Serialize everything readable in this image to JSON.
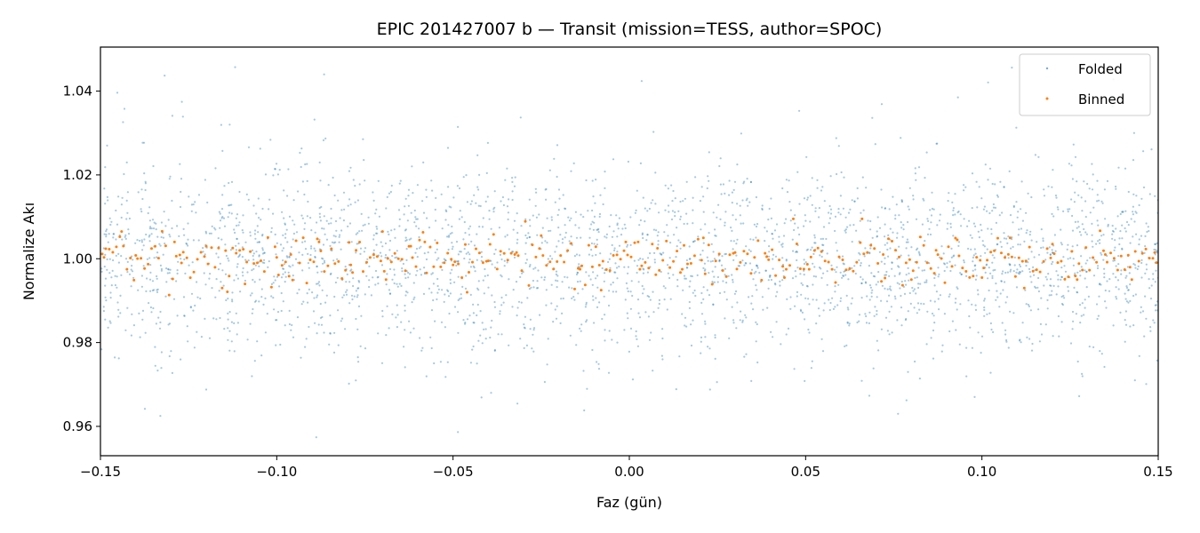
{
  "chart_data": {
    "type": "scatter",
    "title": "EPIC 201427007 b — Transit (mission=TESS, author=SPOC)",
    "xlabel": "Faz (gün)",
    "ylabel": "Normalize Akı",
    "xlim": [
      -0.15,
      0.15
    ],
    "ylim": [
      0.953,
      1.0505
    ],
    "xticks": [
      -0.15,
      -0.1,
      -0.05,
      0.0,
      0.05,
      0.1,
      0.15
    ],
    "xtick_labels": [
      "−0.15",
      "−0.10",
      "−0.05",
      "0.00",
      "0.05",
      "0.10",
      "0.15"
    ],
    "yticks": [
      0.96,
      0.98,
      1.0,
      1.02,
      1.04
    ],
    "ytick_labels": [
      "0.96",
      "0.98",
      "1.00",
      "1.02",
      "1.04"
    ],
    "grid": false,
    "legend_position": "top-right",
    "series": [
      {
        "name": "Folded",
        "color": "#1f77b4",
        "marker": "small-dot",
        "alpha": 0.4,
        "approx_point_count": 3000,
        "center": 1.0,
        "scatter_std": 0.011,
        "points": [
          [
            -0.1481,
            1.027
          ],
          [
            -0.1452,
            1.0396
          ],
          [
            -0.1473,
            0.9851
          ],
          [
            -0.1436,
            1.0326
          ],
          [
            -0.1412,
            0.9817
          ],
          [
            -0.1374,
            0.9642
          ],
          [
            -0.135,
            1.0221
          ],
          [
            -0.133,
            0.9625
          ],
          [
            -0.1318,
            1.0437
          ],
          [
            -0.1296,
            1.0341
          ],
          [
            -0.1266,
            1.0339
          ],
          [
            -0.1233,
            0.9788
          ],
          [
            -0.12,
            0.9688
          ],
          [
            -0.1118,
            1.0457
          ],
          [
            -0.1079,
            1.0266
          ],
          [
            -0.101,
            1.0199
          ],
          [
            -0.0893,
            1.0332
          ],
          [
            -0.0888,
            0.9574
          ],
          [
            -0.0837,
            0.9776
          ],
          [
            -0.0795,
            0.9702
          ],
          [
            -0.064,
            0.979
          ],
          [
            -0.0449,
            0.9752
          ],
          [
            -0.0392,
            0.968
          ],
          [
            -0.0308,
            1.0337
          ],
          [
            -0.0128,
            0.9638
          ],
          [
            -0.0034,
            0.98
          ],
          [
            0.0035,
            1.0424
          ],
          [
            0.001,
            0.9712
          ],
          [
            0.0142,
            0.9767
          ],
          [
            0.0229,
            0.9688
          ],
          [
            0.0468,
            0.9737
          ],
          [
            0.0546,
            0.9808
          ],
          [
            0.0689,
            1.0336
          ],
          [
            0.0716,
            1.0369
          ],
          [
            0.0762,
            0.963
          ],
          [
            0.0932,
            1.0385
          ],
          [
            0.107,
            0.9802
          ],
          [
            0.1085,
            1.0456
          ],
          [
            0.1142,
            0.9781
          ],
          [
            0.1276,
            0.9672
          ],
          [
            0.1373,
            1.0428
          ],
          [
            0.1434,
            0.971
          ],
          [
            0.1466,
            0.9701
          ],
          [
            0.1497,
            0.9757
          ],
          [
            0.1481,
            1.0261
          ]
        ]
      },
      {
        "name": "Binned",
        "color": "#ff7f0e",
        "marker": "small-dot",
        "bin_count": 300,
        "center": 1.0,
        "scatter_std": 0.0028,
        "points": [
          [
            -0.149,
            1.0003
          ],
          [
            -0.144,
            1.0065
          ],
          [
            -0.14,
            1.0008
          ],
          [
            -0.129,
            1.004
          ],
          [
            -0.127,
            0.999
          ],
          [
            -0.12,
            1.003
          ],
          [
            -0.114,
            0.9921
          ],
          [
            -0.109,
            0.994
          ],
          [
            -0.1,
            1.0003
          ],
          [
            -0.096,
            1.001
          ],
          [
            -0.088,
            1.004
          ],
          [
            -0.079,
            0.9985
          ],
          [
            -0.07,
            1.0065
          ],
          [
            -0.069,
            0.995
          ],
          [
            -0.062,
            1.003
          ],
          [
            -0.058,
            1.004
          ],
          [
            -0.05,
            0.9985
          ],
          [
            -0.046,
            0.992
          ],
          [
            -0.04,
            0.9995
          ],
          [
            -0.032,
            1.0015
          ],
          [
            -0.025,
            1.0055
          ],
          [
            -0.014,
            0.9975
          ],
          [
            -0.008,
            0.9925
          ],
          [
            -0.001,
            1.004
          ],
          [
            0.003,
            0.9975
          ],
          [
            0.008,
            1.0025
          ],
          [
            0.015,
            0.9975
          ],
          [
            0.021,
            1.005
          ],
          [
            0.03,
            1.0015
          ],
          [
            0.039,
            1.0005
          ],
          [
            0.044,
            0.9955
          ],
          [
            0.051,
            0.9975
          ],
          [
            0.066,
            1.0095
          ],
          [
            0.072,
            1.001
          ],
          [
            0.08,
            0.995
          ],
          [
            0.087,
            1.002
          ],
          [
            0.093,
            1.0045
          ],
          [
            0.1,
            0.9955
          ],
          [
            0.108,
            1.005
          ],
          [
            0.112,
            0.993
          ],
          [
            0.12,
            1.0035
          ],
          [
            0.127,
            0.995
          ],
          [
            0.135,
            1.001
          ],
          [
            0.142,
            0.998
          ],
          [
            0.149,
            1.0015
          ]
        ]
      }
    ]
  }
}
